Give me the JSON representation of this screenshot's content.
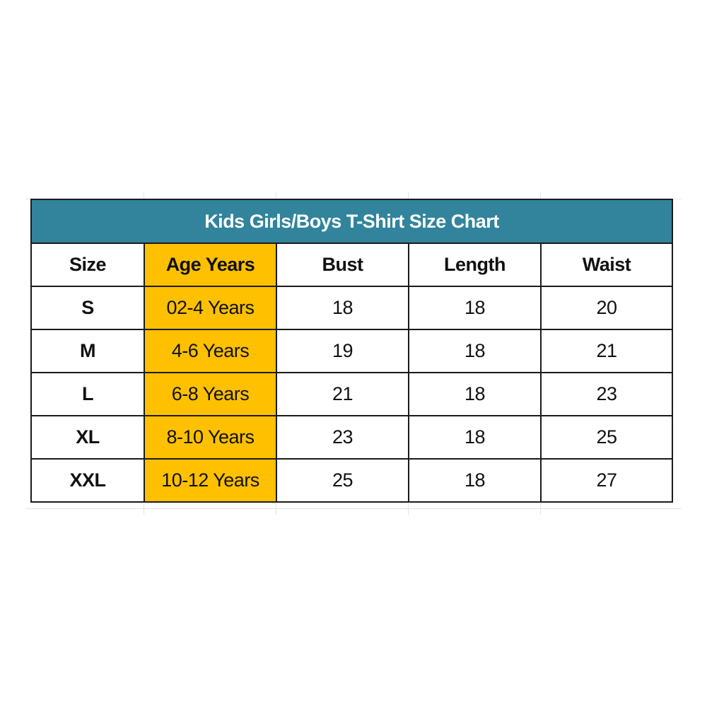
{
  "title": "Kids Girls/Boys T-Shirt Size Chart",
  "headers": [
    "Size",
    "Age Years",
    "Bust",
    "Length",
    "Waist"
  ],
  "rows": [
    [
      "S",
      "02-4 Years",
      "18",
      "18",
      "20"
    ],
    [
      "M",
      "4-6 Years",
      "19",
      "18",
      "21"
    ],
    [
      "L",
      "6-8 Years",
      "21",
      "18",
      "23"
    ],
    [
      "XL",
      "8-10 Years",
      "23",
      "18",
      "25"
    ],
    [
      "XXL",
      "10-12 Years",
      "25",
      "18",
      "27"
    ]
  ],
  "colors": {
    "title_bg": "#31849B",
    "age_column_bg": "#FFC000"
  }
}
